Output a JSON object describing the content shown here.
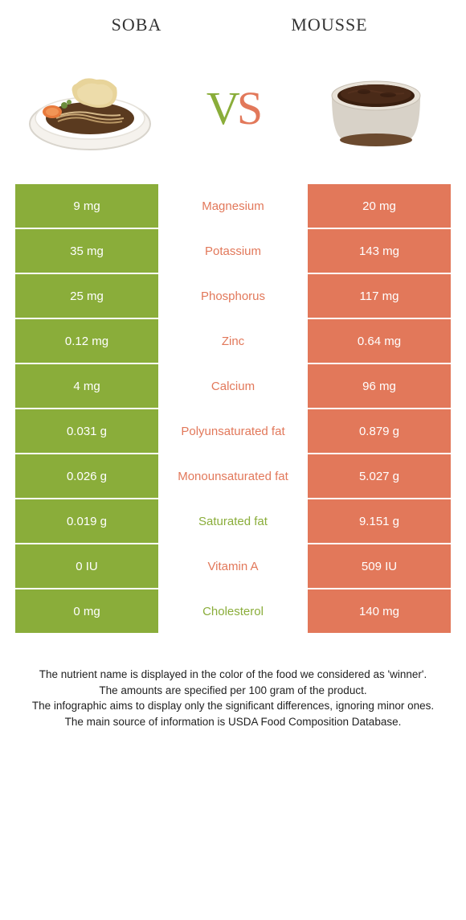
{
  "header": {
    "left_title": "SOBA",
    "right_title": "MOUSSE"
  },
  "vs": {
    "v": "V",
    "s": "S"
  },
  "colors": {
    "green": "#8aad3a",
    "orange": "#e2785a",
    "green_text": "#8aad3a",
    "orange_text": "#e2785a"
  },
  "rows": [
    {
      "left": "9 mg",
      "mid": "Magnesium",
      "right": "20 mg",
      "winner": "orange"
    },
    {
      "left": "35 mg",
      "mid": "Potassium",
      "right": "143 mg",
      "winner": "orange"
    },
    {
      "left": "25 mg",
      "mid": "Phosphorus",
      "right": "117 mg",
      "winner": "orange"
    },
    {
      "left": "0.12 mg",
      "mid": "Zinc",
      "right": "0.64 mg",
      "winner": "orange"
    },
    {
      "left": "4 mg",
      "mid": "Calcium",
      "right": "96 mg",
      "winner": "orange"
    },
    {
      "left": "0.031 g",
      "mid": "Polyunsaturated fat",
      "right": "0.879 g",
      "winner": "orange"
    },
    {
      "left": "0.026 g",
      "mid": "Monounsaturated fat",
      "right": "5.027 g",
      "winner": "orange"
    },
    {
      "left": "0.019 g",
      "mid": "Saturated fat",
      "right": "9.151 g",
      "winner": "green"
    },
    {
      "left": "0 IU",
      "mid": "Vitamin A",
      "right": "509 IU",
      "winner": "orange"
    },
    {
      "left": "0 mg",
      "mid": "Cholesterol",
      "right": "140 mg",
      "winner": "green"
    }
  ],
  "footer": {
    "line1": "The nutrient name is displayed in the color of the food we considered as 'winner'.",
    "line2": "The amounts are specified per 100 gram of the product.",
    "line3": "The infographic aims to display only the significant differences, ignoring minor ones.",
    "line4": "The main source of information is USDA Food Composition Database."
  }
}
